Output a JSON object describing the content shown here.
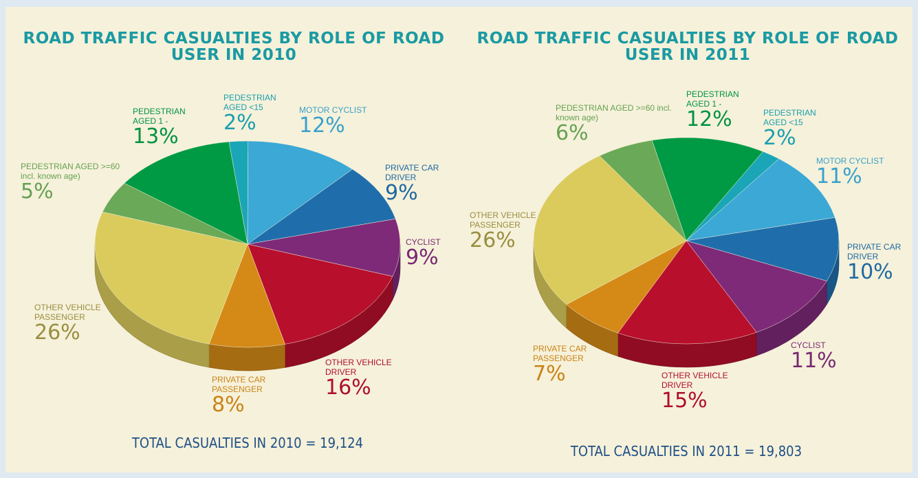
{
  "chart_data": [
    {
      "type": "pie",
      "title": "ROAD TRAFFIC CASUALTIES BY ROLE OF ROAD USER IN 2010",
      "categories": [
        "PEDESTRIAN AGED <15",
        "MOTOR CYCLIST",
        "PRIVATE CAR DRIVER",
        "CYCLIST",
        "OTHER VEHICLE DRIVER",
        "PRIVATE CAR PASSENGER",
        "OTHER VEHICLE PASSENGER",
        "PEDESTRIAN AGED >=60 incl. known age)",
        "PEDESTRIAN AGED 1 -"
      ],
      "values": [
        2,
        12,
        9,
        9,
        16,
        8,
        26,
        5,
        13
      ],
      "value_labels": [
        "2%",
        "12%",
        "9%",
        "9%",
        "16%",
        "8%",
        "26%",
        "5%",
        "13%"
      ],
      "colors": [
        "#1aa6b7",
        "#3ba8d6",
        "#1f6eab",
        "#7e2a78",
        "#b80f2d",
        "#d58a17",
        "#dacb5c",
        "#6aa957",
        "#009a45"
      ],
      "annotation": "TOTAL CASUALTIES IN 2010 = 19,124"
    },
    {
      "type": "pie",
      "title": "ROAD TRAFFIC CASUALTIES BY ROLE OF ROAD USER IN 2011",
      "categories": [
        "PEDESTRIAN AGED 1 -",
        "PEDESTRIAN AGED <15",
        "MOTOR CYCLIST",
        "PRIVATE CAR DRIVER",
        "CYCLIST",
        "OTHER VEHICLE DRIVER",
        "PRIVATE CAR PASSENGER",
        "OTHER VEHICLE PASSENGER",
        "PEDESTRIAN AGED >=60 incl. known age)"
      ],
      "values": [
        12,
        2,
        11,
        10,
        11,
        15,
        7,
        26,
        6
      ],
      "value_labels": [
        "12%",
        "2%",
        "11%",
        "10%",
        "11%",
        "15%",
        "7%",
        "26%",
        "6%"
      ],
      "colors": [
        "#009a45",
        "#1aa6b7",
        "#3ba8d6",
        "#1f6eab",
        "#7e2a78",
        "#b80f2d",
        "#d58a17",
        "#dacb5c",
        "#6aa957"
      ],
      "annotation": "TOTAL CASUALTIES IN 2011 = 19,803"
    }
  ]
}
